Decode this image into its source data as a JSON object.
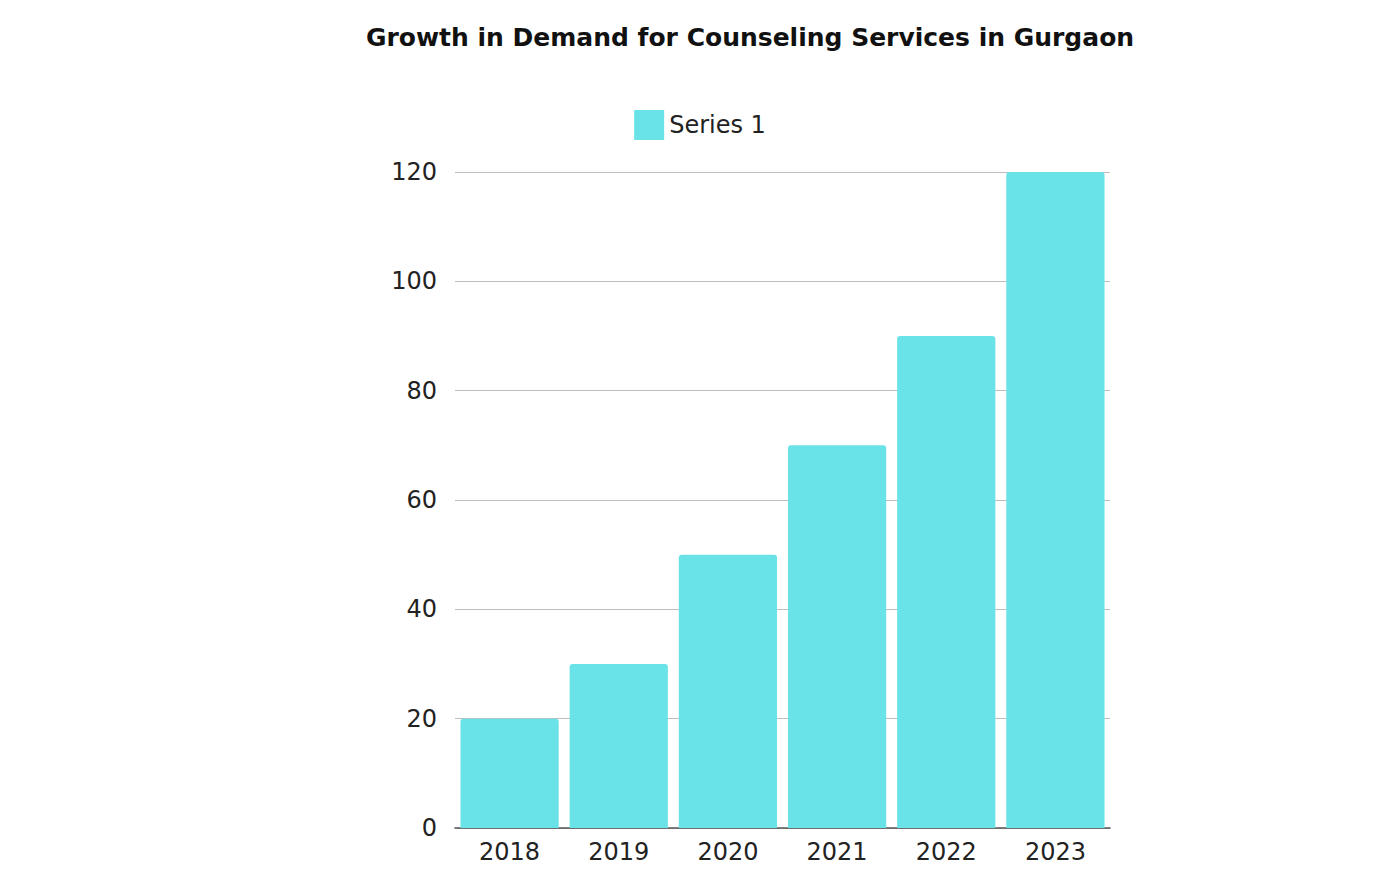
{
  "chart_data": {
    "type": "bar",
    "title": "Growth in Demand for Counseling Services in Gurgaon",
    "categories": [
      "2018",
      "2019",
      "2020",
      "2021",
      "2022",
      "2023"
    ],
    "series": [
      {
        "name": "Series 1",
        "color": "#6ae3e8",
        "values": [
          20,
          30,
          50,
          70,
          90,
          120
        ]
      }
    ],
    "ylim": [
      0,
      120
    ],
    "yticks": [
      0,
      20,
      40,
      60,
      80,
      100,
      120
    ],
    "grid": true,
    "legend": "top"
  }
}
